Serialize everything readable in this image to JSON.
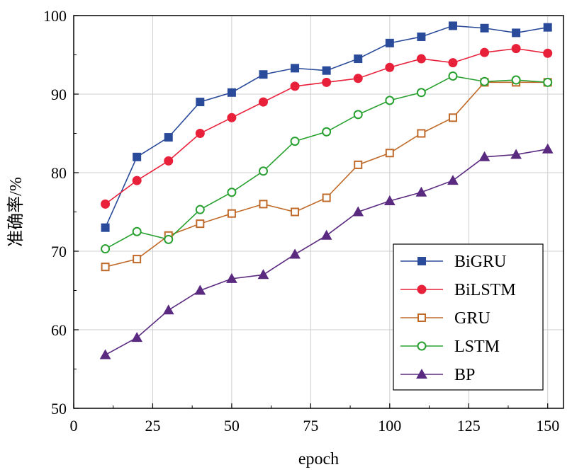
{
  "chart_data": {
    "type": "line",
    "xlabel": "epoch",
    "ylabel": "准确率/%",
    "xlim": [
      0,
      155
    ],
    "ylim": [
      50,
      100
    ],
    "xticks": [
      0,
      25,
      50,
      75,
      100,
      125,
      150
    ],
    "yticks": [
      50,
      60,
      70,
      80,
      90,
      100
    ],
    "grid": true,
    "legend_position": "bottom-right",
    "x": [
      10,
      20,
      30,
      40,
      50,
      60,
      70,
      80,
      90,
      100,
      110,
      120,
      130,
      140,
      150
    ],
    "series": [
      {
        "name": "BiGRU",
        "color": "#2a4a9a",
        "marker": "square-filled",
        "values": [
          73.0,
          82.0,
          84.5,
          89.0,
          90.2,
          92.5,
          93.3,
          93.0,
          94.5,
          96.5,
          97.3,
          98.7,
          98.4,
          97.8,
          98.5
        ]
      },
      {
        "name": "BiLSTM",
        "color": "#e8203a",
        "marker": "circle-filled",
        "values": [
          76.0,
          79.0,
          81.5,
          85.0,
          87.0,
          89.0,
          91.0,
          91.5,
          92.0,
          93.4,
          94.5,
          94.0,
          95.3,
          95.8,
          95.2
        ]
      },
      {
        "name": "GRU",
        "color": "#c06a2a",
        "marker": "square-open",
        "values": [
          68.0,
          69.0,
          72.0,
          73.5,
          74.8,
          76.0,
          75.0,
          76.8,
          81.0,
          82.5,
          85.0,
          87.0,
          91.5,
          91.5,
          91.5
        ]
      },
      {
        "name": "LSTM",
        "color": "#28a030",
        "marker": "circle-open",
        "values": [
          70.3,
          72.5,
          71.5,
          75.3,
          77.5,
          80.2,
          84.0,
          85.2,
          87.4,
          89.2,
          90.2,
          92.3,
          91.6,
          91.8,
          91.5
        ]
      },
      {
        "name": "BP",
        "color": "#5a2a80",
        "marker": "triangle-filled",
        "values": [
          56.8,
          59.0,
          62.5,
          65.0,
          66.5,
          67.0,
          69.6,
          72.0,
          75.0,
          76.4,
          77.5,
          79.0,
          82.0,
          82.3,
          83.0
        ]
      }
    ]
  }
}
